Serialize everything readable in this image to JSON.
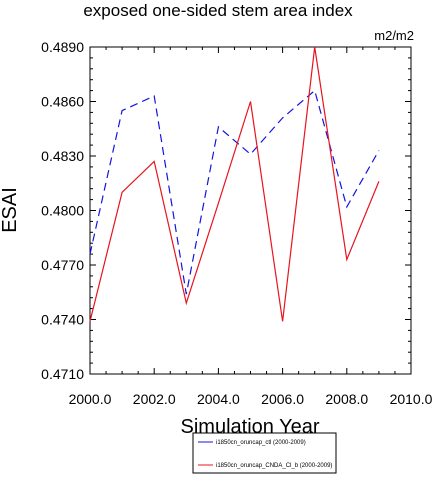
{
  "chart_data": {
    "type": "line",
    "title": "exposed one-sided stem area index",
    "units": "m2/m2",
    "xlabel": "Simulation Year",
    "ylabel": "ESAI",
    "xlim": [
      2000.0,
      2010.0
    ],
    "ylim": [
      0.471,
      0.489
    ],
    "x_ticks": [
      "2000.0",
      "2002.0",
      "2004.0",
      "2006.0",
      "2008.0",
      "2010.0"
    ],
    "y_ticks": [
      "0.4710",
      "0.4740",
      "0.4770",
      "0.4800",
      "0.4830",
      "0.4860",
      "0.4890"
    ],
    "x": [
      2000,
      2001,
      2002,
      2003,
      2004,
      2005,
      2006,
      2007,
      2008,
      2009
    ],
    "legend_placement": "bottom-center",
    "grid": false,
    "series": [
      {
        "name": "i1850cn_oruncap_ctl (2000-2009)",
        "color": "#1414e0",
        "style": "dashed",
        "values": [
          0.4776,
          0.4855,
          0.4863,
          0.4754,
          0.4846,
          0.4831,
          0.4851,
          0.4866,
          0.4802,
          0.4833
        ]
      },
      {
        "name": "i1850cn_oruncap_CNDA_Cl_b (2000-2009)",
        "color": "#e8141e",
        "style": "solid",
        "values": [
          0.4739,
          0.481,
          0.4827,
          0.4749,
          0.4804,
          0.486,
          0.4739,
          0.489,
          0.4773,
          0.4816
        ]
      }
    ]
  }
}
